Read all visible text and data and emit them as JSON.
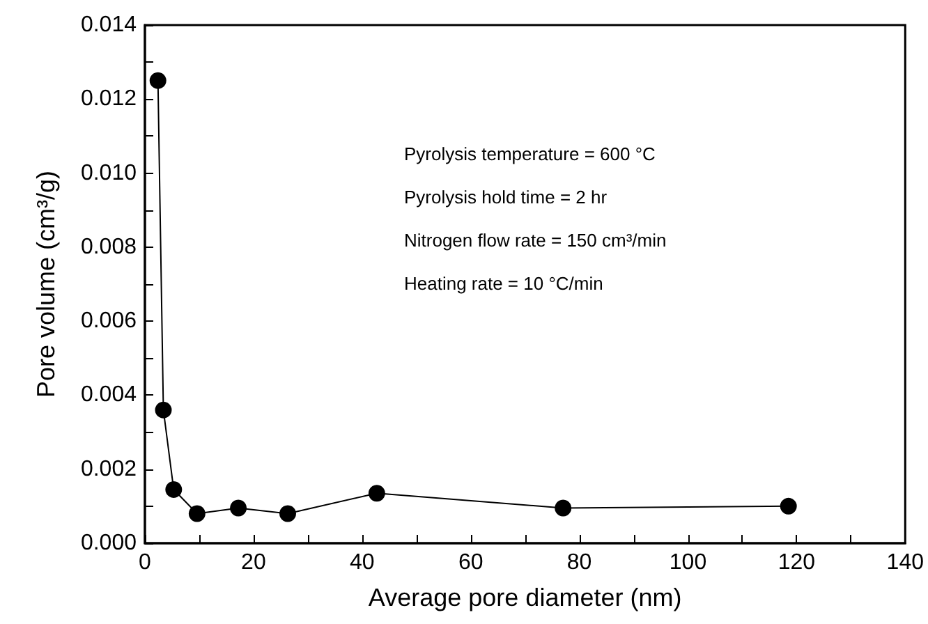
{
  "chart_data": {
    "type": "line",
    "xlabel": "Average pore diameter (nm)",
    "ylabel": "Pore volume (cm³/g)",
    "annotations": [
      "Pyrolysis temperature = 600 °C",
      "Pyrolysis hold time = 2 hr",
      "Nitrogen flow rate = 150 cm³/min",
      "Heating rate = 10 °C/min"
    ],
    "series": [
      {
        "color": "#000000",
        "x": [
          2.4,
          3.4,
          5.3,
          9.6,
          17.2,
          26.3,
          42.7,
          77,
          118.5
        ],
        "values": [
          0.0125,
          0.0036,
          0.00145,
          0.0008,
          0.00095,
          0.0008,
          0.00135,
          0.00095,
          0.001
        ]
      }
    ],
    "xlim": [
      0,
      140
    ],
    "xticks": [
      0,
      20,
      40,
      60,
      80,
      100,
      120,
      140
    ],
    "ylim": [
      0,
      0.014
    ],
    "yticks": [
      {
        "value": 0,
        "label": "0.000"
      },
      {
        "value": 0.002,
        "label": "0.002"
      },
      {
        "value": 0.004,
        "label": "0.004"
      },
      {
        "value": 0.006,
        "label": "0.006"
      },
      {
        "value": 0.008,
        "label": "0.008"
      },
      {
        "value": 0.01,
        "label": "0.010"
      },
      {
        "value": 0.012,
        "label": "0.012"
      },
      {
        "value": 0.014,
        "label": "0.014"
      }
    ],
    "marker": "circle",
    "line_style": "solid",
    "grid": false
  }
}
